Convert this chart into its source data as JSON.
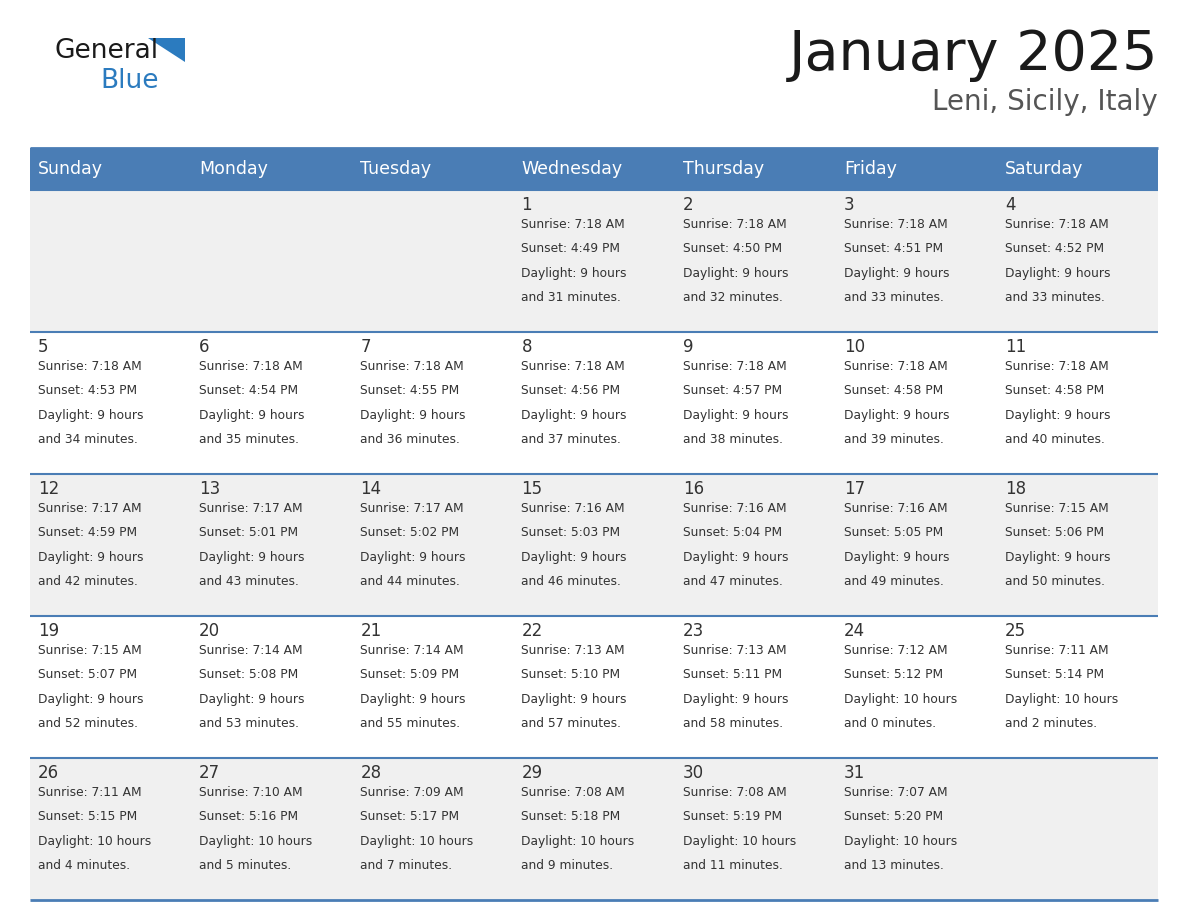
{
  "title": "January 2025",
  "subtitle": "Leni, Sicily, Italy",
  "days_of_week": [
    "Sunday",
    "Monday",
    "Tuesday",
    "Wednesday",
    "Thursday",
    "Friday",
    "Saturday"
  ],
  "header_bg": "#4a7db5",
  "header_text_color": "#ffffff",
  "row_bg_odd": "#f0f0f0",
  "row_bg_even": "#ffffff",
  "border_color": "#4a7db5",
  "text_color": "#333333",
  "title_color": "#1a1a1a",
  "subtitle_color": "#555555",
  "logo_general_color": "#1a1a1a",
  "logo_blue_color": "#2b7bbf",
  "calendar_data": [
    [
      {
        "day": "",
        "sunrise": "",
        "sunset": "",
        "daylight": ""
      },
      {
        "day": "",
        "sunrise": "",
        "sunset": "",
        "daylight": ""
      },
      {
        "day": "",
        "sunrise": "",
        "sunset": "",
        "daylight": ""
      },
      {
        "day": "1",
        "sunrise": "7:18 AM",
        "sunset": "4:49 PM",
        "daylight": "9 hours and 31 minutes."
      },
      {
        "day": "2",
        "sunrise": "7:18 AM",
        "sunset": "4:50 PM",
        "daylight": "9 hours and 32 minutes."
      },
      {
        "day": "3",
        "sunrise": "7:18 AM",
        "sunset": "4:51 PM",
        "daylight": "9 hours and 33 minutes."
      },
      {
        "day": "4",
        "sunrise": "7:18 AM",
        "sunset": "4:52 PM",
        "daylight": "9 hours and 33 minutes."
      }
    ],
    [
      {
        "day": "5",
        "sunrise": "7:18 AM",
        "sunset": "4:53 PM",
        "daylight": "9 hours and 34 minutes."
      },
      {
        "day": "6",
        "sunrise": "7:18 AM",
        "sunset": "4:54 PM",
        "daylight": "9 hours and 35 minutes."
      },
      {
        "day": "7",
        "sunrise": "7:18 AM",
        "sunset": "4:55 PM",
        "daylight": "9 hours and 36 minutes."
      },
      {
        "day": "8",
        "sunrise": "7:18 AM",
        "sunset": "4:56 PM",
        "daylight": "9 hours and 37 minutes."
      },
      {
        "day": "9",
        "sunrise": "7:18 AM",
        "sunset": "4:57 PM",
        "daylight": "9 hours and 38 minutes."
      },
      {
        "day": "10",
        "sunrise": "7:18 AM",
        "sunset": "4:58 PM",
        "daylight": "9 hours and 39 minutes."
      },
      {
        "day": "11",
        "sunrise": "7:18 AM",
        "sunset": "4:58 PM",
        "daylight": "9 hours and 40 minutes."
      }
    ],
    [
      {
        "day": "12",
        "sunrise": "7:17 AM",
        "sunset": "4:59 PM",
        "daylight": "9 hours and 42 minutes."
      },
      {
        "day": "13",
        "sunrise": "7:17 AM",
        "sunset": "5:01 PM",
        "daylight": "9 hours and 43 minutes."
      },
      {
        "day": "14",
        "sunrise": "7:17 AM",
        "sunset": "5:02 PM",
        "daylight": "9 hours and 44 minutes."
      },
      {
        "day": "15",
        "sunrise": "7:16 AM",
        "sunset": "5:03 PM",
        "daylight": "9 hours and 46 minutes."
      },
      {
        "day": "16",
        "sunrise": "7:16 AM",
        "sunset": "5:04 PM",
        "daylight": "9 hours and 47 minutes."
      },
      {
        "day": "17",
        "sunrise": "7:16 AM",
        "sunset": "5:05 PM",
        "daylight": "9 hours and 49 minutes."
      },
      {
        "day": "18",
        "sunrise": "7:15 AM",
        "sunset": "5:06 PM",
        "daylight": "9 hours and 50 minutes."
      }
    ],
    [
      {
        "day": "19",
        "sunrise": "7:15 AM",
        "sunset": "5:07 PM",
        "daylight": "9 hours and 52 minutes."
      },
      {
        "day": "20",
        "sunrise": "7:14 AM",
        "sunset": "5:08 PM",
        "daylight": "9 hours and 53 minutes."
      },
      {
        "day": "21",
        "sunrise": "7:14 AM",
        "sunset": "5:09 PM",
        "daylight": "9 hours and 55 minutes."
      },
      {
        "day": "22",
        "sunrise": "7:13 AM",
        "sunset": "5:10 PM",
        "daylight": "9 hours and 57 minutes."
      },
      {
        "day": "23",
        "sunrise": "7:13 AM",
        "sunset": "5:11 PM",
        "daylight": "9 hours and 58 minutes."
      },
      {
        "day": "24",
        "sunrise": "7:12 AM",
        "sunset": "5:12 PM",
        "daylight": "10 hours and 0 minutes."
      },
      {
        "day": "25",
        "sunrise": "7:11 AM",
        "sunset": "5:14 PM",
        "daylight": "10 hours and 2 minutes."
      }
    ],
    [
      {
        "day": "26",
        "sunrise": "7:11 AM",
        "sunset": "5:15 PM",
        "daylight": "10 hours and 4 minutes."
      },
      {
        "day": "27",
        "sunrise": "7:10 AM",
        "sunset": "5:16 PM",
        "daylight": "10 hours and 5 minutes."
      },
      {
        "day": "28",
        "sunrise": "7:09 AM",
        "sunset": "5:17 PM",
        "daylight": "10 hours and 7 minutes."
      },
      {
        "day": "29",
        "sunrise": "7:08 AM",
        "sunset": "5:18 PM",
        "daylight": "10 hours and 9 minutes."
      },
      {
        "day": "30",
        "sunrise": "7:08 AM",
        "sunset": "5:19 PM",
        "daylight": "10 hours and 11 minutes."
      },
      {
        "day": "31",
        "sunrise": "7:07 AM",
        "sunset": "5:20 PM",
        "daylight": "10 hours and 13 minutes."
      },
      {
        "day": "",
        "sunrise": "",
        "sunset": "",
        "daylight": ""
      }
    ]
  ]
}
